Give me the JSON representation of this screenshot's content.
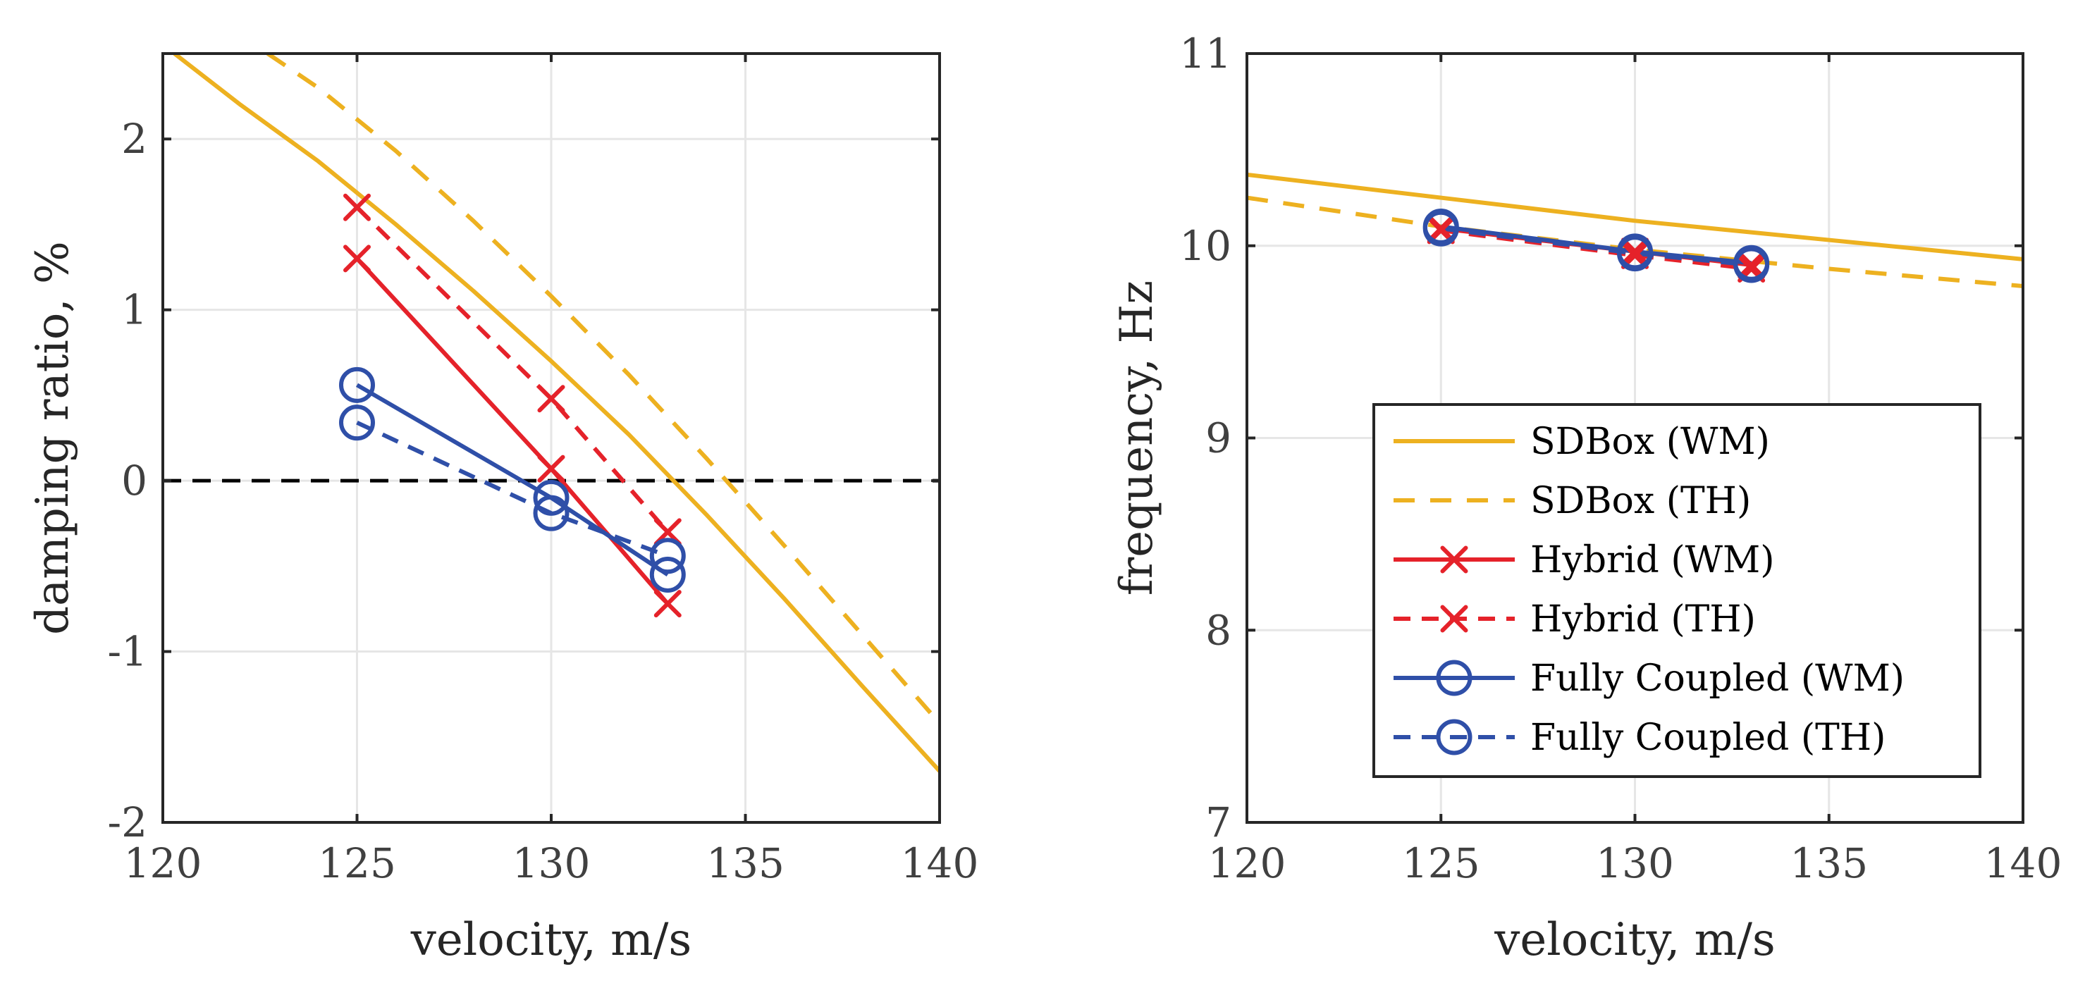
{
  "colors": {
    "sdbox": "#EDB120",
    "hybrid": "#E5222A",
    "coupled": "#2F4FA8",
    "zero_line": "#000000"
  },
  "legend": {
    "location": "southeast",
    "entries": [
      {
        "label": "SDBox (WM)",
        "series": "SDBox (WM)"
      },
      {
        "label": "SDBox (TH)",
        "series": "SDBox (TH)"
      },
      {
        "label": "Hybrid (WM)",
        "series": "Hybrid (WM)"
      },
      {
        "label": "Hybrid (TH)",
        "series": "Hybrid (TH)"
      },
      {
        "label": "Fully Coupled (WM)",
        "series": "Fully Coupled (WM)"
      },
      {
        "label": "Fully Coupled (TH)",
        "series": "Fully Coupled (TH)"
      }
    ]
  },
  "chart_data": [
    {
      "type": "line",
      "xlabel": "velocity, m/s",
      "ylabel": "damping ratio, %",
      "xlim": [
        120,
        140
      ],
      "ylim": [
        -2,
        2.5
      ],
      "xticks": [
        "120",
        "125",
        "130",
        "135",
        "140"
      ],
      "yticks": [
        "-2",
        "-1",
        "0",
        "1",
        "2"
      ],
      "xtick_values": [
        120,
        125,
        130,
        135,
        140
      ],
      "ytick_values": [
        -2,
        -1,
        0,
        1,
        2
      ],
      "grid": true,
      "reference_line": {
        "y": 0,
        "style": "dashed"
      },
      "series": [
        {
          "name": "SDBox (WM)",
          "style": "solid",
          "marker": "none",
          "x": [
            120.3,
            122,
            124,
            126,
            128,
            130,
            132,
            134,
            136,
            138,
            140
          ],
          "y": [
            2.5,
            2.2,
            1.87,
            1.5,
            1.11,
            0.7,
            0.27,
            -0.2,
            -0.69,
            -1.2,
            -1.7
          ]
        },
        {
          "name": "SDBox (TH)",
          "style": "dashed",
          "marker": "none",
          "x": [
            122.7,
            124,
            126,
            128,
            130,
            132,
            134,
            136,
            138,
            140
          ],
          "y": [
            2.5,
            2.3,
            1.93,
            1.52,
            1.08,
            0.62,
            0.13,
            -0.38,
            -0.9,
            -1.42
          ]
        },
        {
          "name": "Hybrid (WM)",
          "style": "solid",
          "marker": "x",
          "x": [
            125,
            130,
            133
          ],
          "y": [
            1.3,
            0.07,
            -0.72
          ]
        },
        {
          "name": "Hybrid (TH)",
          "style": "dashed",
          "marker": "x",
          "x": [
            125,
            130,
            133
          ],
          "y": [
            1.6,
            0.48,
            -0.3
          ]
        },
        {
          "name": "Fully Coupled (WM)",
          "style": "solid",
          "marker": "o",
          "x": [
            125,
            130,
            133
          ],
          "y": [
            0.56,
            -0.1,
            -0.55
          ]
        },
        {
          "name": "Fully Coupled (TH)",
          "style": "dashed",
          "marker": "o",
          "x": [
            125,
            130,
            133
          ],
          "y": [
            0.34,
            -0.19,
            -0.44
          ]
        }
      ]
    },
    {
      "type": "line",
      "xlabel": "velocity, m/s",
      "ylabel": "frequency, Hz",
      "xlim": [
        120,
        140
      ],
      "ylim": [
        7,
        11
      ],
      "xticks": [
        "120",
        "125",
        "130",
        "135",
        "140"
      ],
      "yticks": [
        "7",
        "8",
        "9",
        "10",
        "11"
      ],
      "xtick_values": [
        120,
        125,
        130,
        135,
        140
      ],
      "ytick_values": [
        7,
        8,
        9,
        10,
        11
      ],
      "grid": true,
      "legend": "southeast",
      "series": [
        {
          "name": "SDBox (WM)",
          "style": "solid",
          "marker": "none",
          "x": [
            120,
            125,
            130,
            135,
            140
          ],
          "y": [
            10.37,
            10.25,
            10.13,
            10.03,
            9.93
          ]
        },
        {
          "name": "SDBox (TH)",
          "style": "dashed",
          "marker": "none",
          "x": [
            120,
            125,
            130,
            135,
            140
          ],
          "y": [
            10.25,
            10.1,
            9.98,
            9.88,
            9.79
          ]
        },
        {
          "name": "Hybrid (WM)",
          "style": "solid",
          "marker": "x",
          "x": [
            125,
            130,
            133
          ],
          "y": [
            10.09,
            9.97,
            9.9
          ]
        },
        {
          "name": "Hybrid (TH)",
          "style": "dashed",
          "marker": "x",
          "x": [
            125,
            130,
            133
          ],
          "y": [
            10.08,
            9.95,
            9.88
          ]
        },
        {
          "name": "Fully Coupled (WM)",
          "style": "solid",
          "marker": "o",
          "x": [
            125,
            130,
            133
          ],
          "y": [
            10.1,
            9.97,
            9.91
          ]
        },
        {
          "name": "Fully Coupled (TH)",
          "style": "dashed",
          "marker": "o",
          "x": [
            125,
            130,
            133
          ],
          "y": [
            10.09,
            9.96,
            9.9
          ]
        }
      ]
    }
  ]
}
